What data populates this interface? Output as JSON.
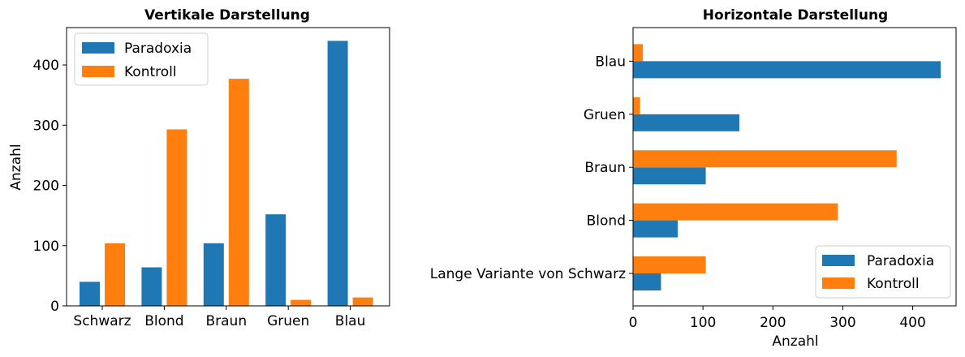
{
  "chart_data": [
    {
      "type": "bar",
      "orientation": "vertical",
      "title": "Vertikale Darstellung",
      "xlabel": "",
      "ylabel": "Anzahl",
      "categories": [
        "Schwarz",
        "Blond",
        "Braun",
        "Gruen",
        "Blau"
      ],
      "series": [
        {
          "name": "Paradoxia",
          "color": "#1f77b4",
          "values": [
            40,
            64,
            104,
            152,
            440
          ]
        },
        {
          "name": "Kontroll",
          "color": "#ff7f0e",
          "values": [
            104,
            293,
            377,
            10,
            14
          ]
        }
      ],
      "ylim": [
        0,
        462
      ],
      "yticks": [
        0,
        100,
        200,
        300,
        400
      ],
      "legend": "top-left",
      "grid": false
    },
    {
      "type": "bar",
      "orientation": "horizontal",
      "title": "Horizontale Darstellung",
      "xlabel": "Anzahl",
      "ylabel": "",
      "categories": [
        "Lange Variante von Schwarz",
        "Blond",
        "Braun",
        "Gruen",
        "Blau"
      ],
      "series": [
        {
          "name": "Paradoxia",
          "color": "#1f77b4",
          "values": [
            40,
            64,
            104,
            152,
            440
          ]
        },
        {
          "name": "Kontroll",
          "color": "#ff7f0e",
          "values": [
            104,
            293,
            377,
            10,
            14
          ]
        }
      ],
      "xlim": [
        0,
        462
      ],
      "xticks": [
        0,
        100,
        200,
        300,
        400
      ],
      "legend": "bottom-right",
      "grid": false
    }
  ]
}
